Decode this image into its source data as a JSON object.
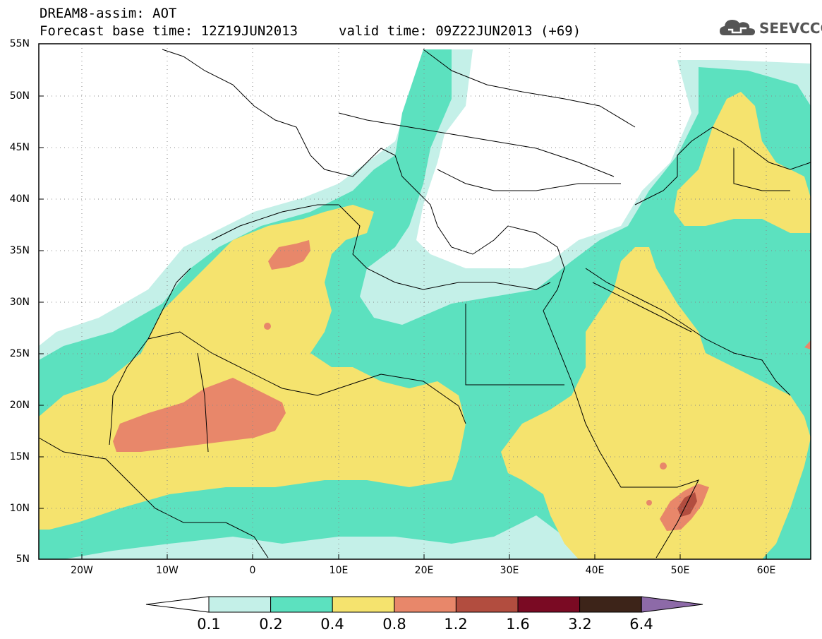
{
  "header": {
    "model_line": "DREAM8-assim: AOT",
    "base_time": "Forecast base time: 12Z19JUN2013",
    "valid_time": "valid time: 09Z22JUN2013 (+69)"
  },
  "logo": {
    "text": "SEEVCCC",
    "icon": "cloud-logo-icon"
  },
  "map": {
    "lat_labels": [
      "55N",
      "50N",
      "45N",
      "40N",
      "35N",
      "30N",
      "25N",
      "20N",
      "15N",
      "10N",
      "5N"
    ],
    "lon_labels": [
      "20W",
      "10W",
      "0",
      "10E",
      "20E",
      "30E",
      "40E",
      "50E",
      "60E"
    ],
    "colors": {
      "c01_02": "#c4f0e8",
      "c02_04": "#5ce1bf",
      "c04_08": "#f5e36e",
      "c08_12": "#e8876a",
      "c12_16": "#b24d3f",
      "c16_32": "#7a0a23",
      "c32_64": "#3d2419",
      "c64": "#8d6aa8"
    }
  },
  "colorbar": {
    "labels": [
      "0.1",
      "0.2",
      "0.4",
      "0.8",
      "1.2",
      "1.6",
      "3.2",
      "6.4"
    ],
    "colors": [
      "#c4f0e8",
      "#5ce1bf",
      "#f5e36e",
      "#e8876a",
      "#b24d3f",
      "#7a0a23",
      "#3d2419"
    ]
  }
}
